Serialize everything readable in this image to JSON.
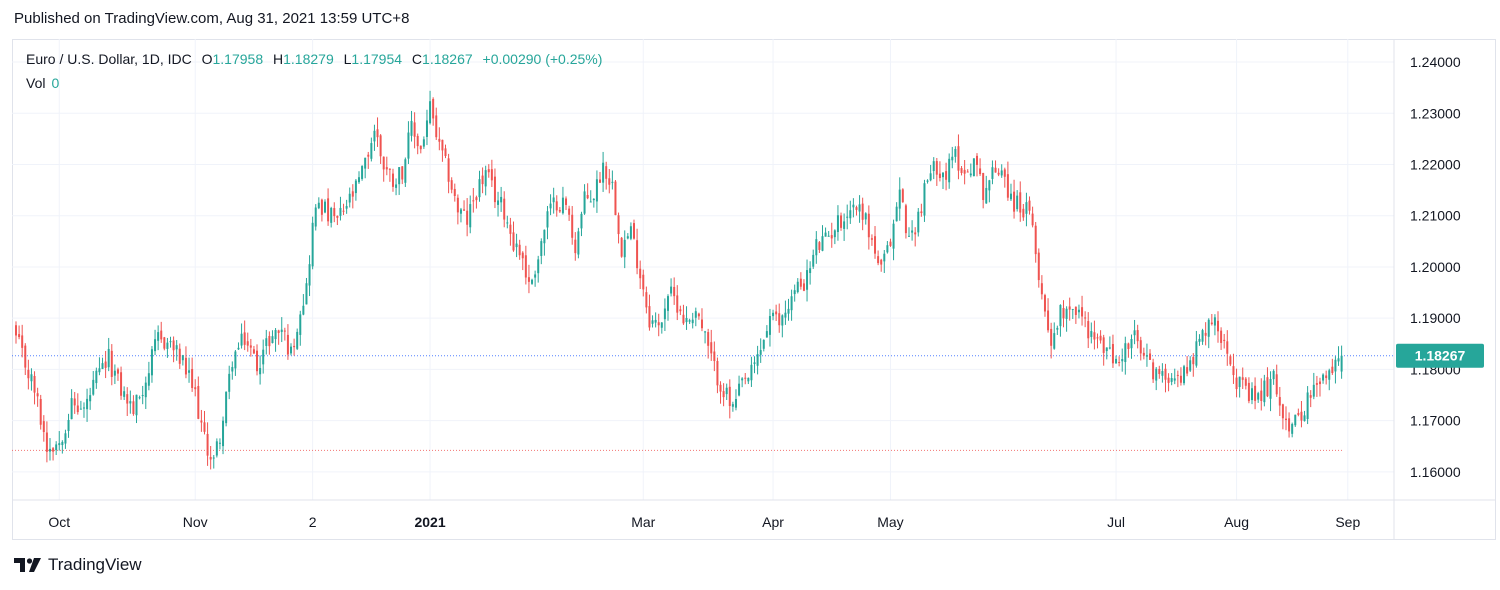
{
  "header": {
    "published": "Published on TradingView.com, Aug 31, 2021 13:59 UTC+8"
  },
  "legend": {
    "symbol": "Euro / U.S. Dollar, 1D, IDC",
    "o_label": "O",
    "o_value": "1.17958",
    "h_label": "H",
    "h_value": "1.18279",
    "l_label": "L",
    "l_value": "1.17954",
    "c_label": "C",
    "c_value": "1.18267",
    "change": "+0.00290 (+0.25%)",
    "vol_label": "Vol",
    "vol_value": "0"
  },
  "footer": {
    "brand": "TradingView"
  },
  "colors": {
    "up": "#26a69a",
    "down": "#ef5350",
    "price_line": "#2962ff",
    "low_line": "#ef5350"
  },
  "chart_data": {
    "type": "candlestick",
    "symbol": "Euro / U.S. Dollar, 1D, IDC",
    "y_ticks": [
      "1.24000",
      "1.23000",
      "1.22000",
      "1.21000",
      "1.20000",
      "1.19000",
      "1.18000",
      "1.17000",
      "1.16000"
    ],
    "ylim": [
      1.1545,
      1.2445
    ],
    "x_ticks": [
      {
        "label": "Oct",
        "bold": false
      },
      {
        "label": "Nov",
        "bold": false
      },
      {
        "label": "2",
        "bold": false
      },
      {
        "label": "2021",
        "bold": true
      },
      {
        "label": "Mar",
        "bold": false
      },
      {
        "label": "Apr",
        "bold": false
      },
      {
        "label": "May",
        "bold": false
      },
      {
        "label": "Jul",
        "bold": false
      },
      {
        "label": "Aug",
        "bold": false
      },
      {
        "label": "Sep",
        "bold": false
      }
    ],
    "last_price": "1.18267",
    "last_price_value": 1.18267,
    "low_line_value": 1.1642,
    "grid": true,
    "close_path": [
      [
        0,
        1.186
      ],
      [
        6,
        1.176
      ],
      [
        10,
        1.165
      ],
      [
        14,
        1.166
      ],
      [
        18,
        1.173
      ],
      [
        22,
        1.172
      ],
      [
        26,
        1.178
      ],
      [
        30,
        1.182
      ],
      [
        34,
        1.176
      ],
      [
        38,
        1.172
      ],
      [
        42,
        1.178
      ],
      [
        46,
        1.186
      ],
      [
        50,
        1.185
      ],
      [
        54,
        1.181
      ],
      [
        58,
        1.175
      ],
      [
        61,
        1.166
      ],
      [
        64,
        1.162
      ],
      [
        67,
        1.17
      ],
      [
        70,
        1.182
      ],
      [
        74,
        1.186
      ],
      [
        78,
        1.181
      ],
      [
        82,
        1.186
      ],
      [
        86,
        1.188
      ],
      [
        89,
        1.183
      ],
      [
        92,
        1.192
      ],
      [
        94,
        1.196
      ],
      [
        96,
        1.208
      ],
      [
        98,
        1.213
      ],
      [
        101,
        1.21
      ],
      [
        104,
        1.209
      ],
      [
        107,
        1.212
      ],
      [
        110,
        1.215
      ],
      [
        113,
        1.22
      ],
      [
        116,
        1.227
      ],
      [
        119,
        1.22
      ],
      [
        122,
        1.217
      ],
      [
        125,
        1.219
      ],
      [
        128,
        1.227
      ],
      [
        131,
        1.223
      ],
      [
        134,
        1.231
      ],
      [
        137,
        1.223
      ],
      [
        140,
        1.218
      ],
      [
        143,
        1.211
      ],
      [
        146,
        1.209
      ],
      [
        149,
        1.215
      ],
      [
        152,
        1.218
      ],
      [
        155,
        1.214
      ],
      [
        158,
        1.211
      ],
      [
        161,
        1.205
      ],
      [
        164,
        1.202
      ],
      [
        166,
        1.196
      ],
      [
        169,
        1.202
      ],
      [
        172,
        1.21
      ],
      [
        175,
        1.213
      ],
      [
        178,
        1.212
      ],
      [
        181,
        1.204
      ],
      [
        184,
        1.213
      ],
      [
        187,
        1.214
      ],
      [
        190,
        1.22
      ],
      [
        193,
        1.216
      ],
      [
        196,
        1.204
      ],
      [
        199,
        1.207
      ],
      [
        202,
        1.199
      ],
      [
        205,
        1.19
      ],
      [
        208,
        1.188
      ],
      [
        211,
        1.195
      ],
      [
        214,
        1.193
      ],
      [
        217,
        1.189
      ],
      [
        220,
        1.192
      ],
      [
        223,
        1.186
      ],
      [
        226,
        1.18
      ],
      [
        229,
        1.176
      ],
      [
        232,
        1.172
      ],
      [
        235,
        1.177
      ],
      [
        238,
        1.179
      ],
      [
        241,
        1.184
      ],
      [
        244,
        1.19
      ],
      [
        247,
        1.189
      ],
      [
        250,
        1.193
      ],
      [
        253,
        1.196
      ],
      [
        256,
        1.198
      ],
      [
        259,
        1.204
      ],
      [
        262,
        1.205
      ],
      [
        265,
        1.208
      ],
      [
        268,
        1.21
      ],
      [
        271,
        1.212
      ],
      [
        274,
        1.211
      ],
      [
        277,
        1.205
      ],
      [
        280,
        1.199
      ],
      [
        283,
        1.205
      ],
      [
        286,
        1.215
      ],
      [
        289,
        1.205
      ],
      [
        292,
        1.21
      ],
      [
        295,
        1.217
      ],
      [
        298,
        1.22
      ],
      [
        301,
        1.218
      ],
      [
        304,
        1.222
      ],
      [
        307,
        1.218
      ],
      [
        310,
        1.221
      ],
      [
        313,
        1.215
      ],
      [
        316,
        1.218
      ],
      [
        319,
        1.22
      ],
      [
        322,
        1.213
      ],
      [
        325,
        1.212
      ],
      [
        328,
        1.21
      ],
      [
        331,
        1.199
      ],
      [
        333,
        1.191
      ],
      [
        335,
        1.186
      ],
      [
        338,
        1.191
      ],
      [
        341,
        1.193
      ],
      [
        344,
        1.191
      ],
      [
        347,
        1.188
      ],
      [
        350,
        1.185
      ],
      [
        353,
        1.184
      ],
      [
        356,
        1.181
      ],
      [
        359,
        1.184
      ],
      [
        362,
        1.186
      ],
      [
        365,
        1.182
      ],
      [
        368,
        1.18
      ],
      [
        371,
        1.178
      ],
      [
        374,
        1.18
      ],
      [
        377,
        1.178
      ],
      [
        380,
        1.182
      ],
      [
        383,
        1.185
      ],
      [
        386,
        1.19
      ],
      [
        389,
        1.188
      ],
      [
        392,
        1.185
      ],
      [
        395,
        1.178
      ],
      [
        398,
        1.175
      ],
      [
        401,
        1.174
      ],
      [
        404,
        1.176
      ],
      [
        407,
        1.178
      ],
      [
        410,
        1.172
      ],
      [
        413,
        1.168
      ],
      [
        416,
        1.172
      ],
      [
        419,
        1.175
      ],
      [
        422,
        1.177
      ],
      [
        425,
        1.179
      ],
      [
        428,
        1.182
      ],
      [
        429,
        1.18267
      ]
    ]
  }
}
